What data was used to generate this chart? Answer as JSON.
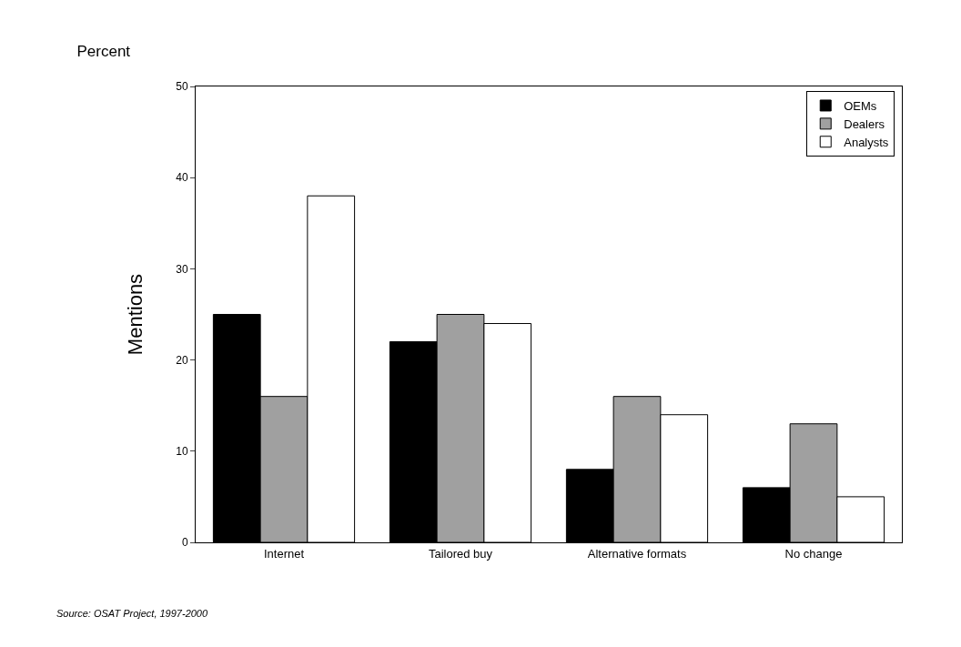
{
  "chart_data": {
    "type": "bar",
    "title": "Percent",
    "ylabel": "Mentions",
    "categories": [
      "Internet",
      "Tailored buy",
      "Alternative formats",
      "No change"
    ],
    "series": [
      {
        "name": "OEMs",
        "color": "#000000",
        "values": [
          25,
          22,
          8,
          6
        ]
      },
      {
        "name": "Dealers",
        "color": "#a0a0a0",
        "values": [
          16,
          25,
          16,
          13
        ]
      },
      {
        "name": "Analysts",
        "color": "#ffffff",
        "values": [
          38,
          24,
          14,
          5
        ]
      }
    ],
    "ylim": [
      0,
      50
    ],
    "yticks": [
      0,
      10,
      20,
      30,
      40,
      50
    ],
    "grid": false,
    "legend": "top right",
    "annotations": [
      "Source: OSAT Project, 1997-2000"
    ]
  }
}
